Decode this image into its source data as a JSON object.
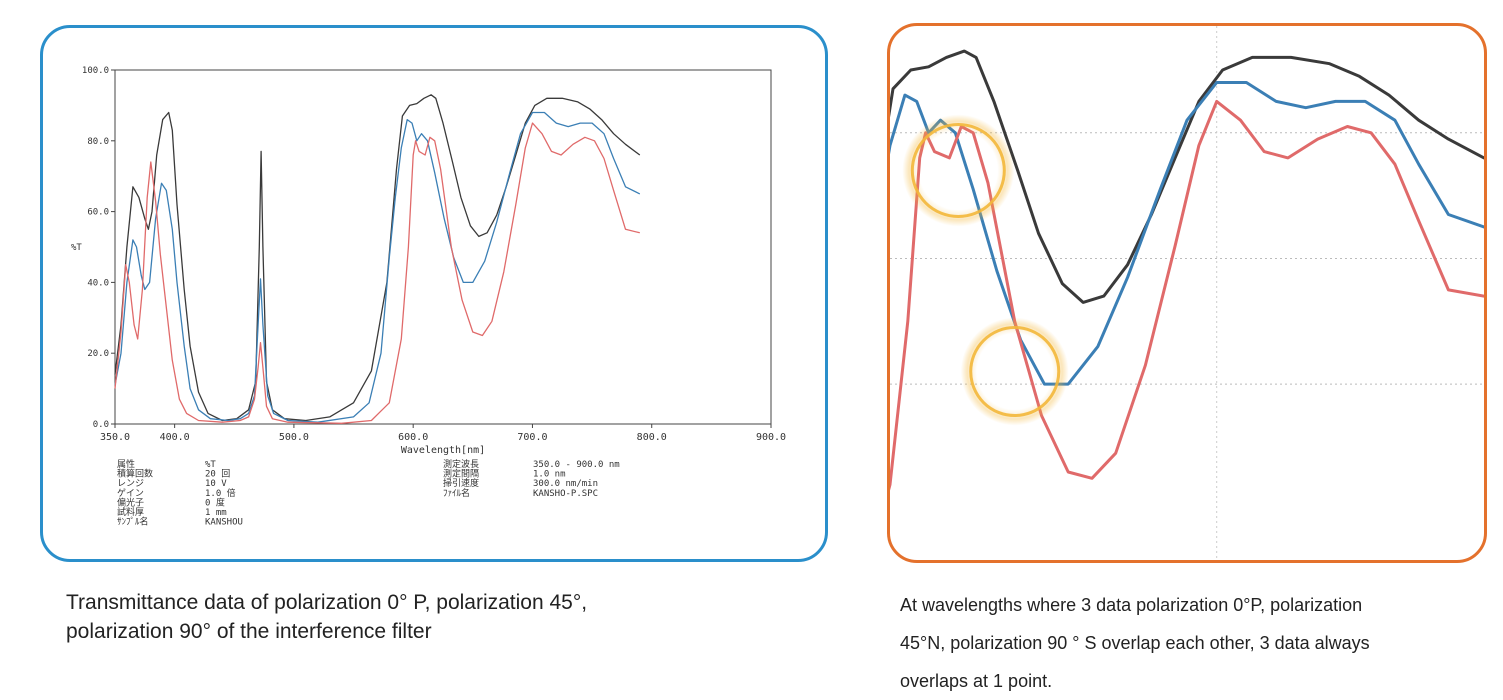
{
  "colors": {
    "left_border": "#2a8fcb",
    "right_border": "#e4712c",
    "series_black": "#3a3a3a",
    "series_blue": "#3b7fb5",
    "series_red": "#e06a6a",
    "highlight": "#f3b73a"
  },
  "chart_data": [
    {
      "type": "line",
      "xlabel": "Wavelength[nm]",
      "ylabel": "%T",
      "xlim": [
        350,
        900
      ],
      "ylim": [
        0,
        100
      ],
      "x_ticks": [
        "350.0",
        "400.0",
        "500.0",
        "600.0",
        "700.0",
        "800.0",
        "900.0"
      ],
      "y_ticks": [
        "100.0",
        "80.0",
        "60.0",
        "40.0",
        "20.0",
        "0.0"
      ],
      "grid": false,
      "series": [
        {
          "color": "black",
          "points": [
            [
              350,
              14
            ],
            [
              355,
              28
            ],
            [
              360,
              50
            ],
            [
              365,
              67
            ],
            [
              370,
              64
            ],
            [
              375,
              58
            ],
            [
              378,
              55
            ],
            [
              381,
              60
            ],
            [
              385,
              76
            ],
            [
              390,
              86
            ],
            [
              395,
              88
            ],
            [
              398,
              83
            ],
            [
              402,
              62
            ],
            [
              408,
              38
            ],
            [
              413,
              22
            ],
            [
              420,
              9
            ],
            [
              428,
              3
            ],
            [
              440,
              1
            ],
            [
              452,
              1.5
            ],
            [
              462,
              4
            ],
            [
              468,
              12
            ],
            [
              471,
              50
            ],
            [
              472.5,
              77
            ],
            [
              474,
              50
            ],
            [
              477,
              12
            ],
            [
              482,
              4
            ],
            [
              492,
              1.5
            ],
            [
              510,
              1
            ],
            [
              530,
              2
            ],
            [
              550,
              6
            ],
            [
              565,
              15
            ],
            [
              578,
              40
            ],
            [
              586,
              72
            ],
            [
              591,
              87
            ],
            [
              597,
              90
            ],
            [
              603,
              90.5
            ],
            [
              609,
              92
            ],
            [
              615,
              93
            ],
            [
              619,
              92
            ],
            [
              625,
              85
            ],
            [
              633,
              74
            ],
            [
              640,
              64
            ],
            [
              648,
              56
            ],
            [
              655,
              53
            ],
            [
              662,
              54
            ],
            [
              670,
              59
            ],
            [
              678,
              67
            ],
            [
              686,
              76
            ],
            [
              694,
              85
            ],
            [
              702,
              90
            ],
            [
              712,
              92
            ],
            [
              725,
              92
            ],
            [
              738,
              91
            ],
            [
              748,
              89
            ],
            [
              758,
              86
            ],
            [
              768,
              82
            ],
            [
              778,
              79
            ],
            [
              790,
              76
            ]
          ]
        },
        {
          "color": "blue",
          "points": [
            [
              350,
              11
            ],
            [
              355,
              20
            ],
            [
              360,
              40
            ],
            [
              365,
              52
            ],
            [
              368,
              50
            ],
            [
              372,
              42
            ],
            [
              375,
              38
            ],
            [
              379,
              40
            ],
            [
              384,
              58
            ],
            [
              389,
              68
            ],
            [
              393,
              66
            ],
            [
              398,
              55
            ],
            [
              402,
              40
            ],
            [
              408,
              22
            ],
            [
              413,
              10
            ],
            [
              420,
              4
            ],
            [
              430,
              1.5
            ],
            [
              445,
              1
            ],
            [
              455,
              1.5
            ],
            [
              462,
              3
            ],
            [
              467,
              8
            ],
            [
              470,
              28
            ],
            [
              472,
              41
            ],
            [
              474,
              28
            ],
            [
              478,
              8
            ],
            [
              483,
              3
            ],
            [
              495,
              1
            ],
            [
              520,
              0.5
            ],
            [
              550,
              2
            ],
            [
              563,
              6
            ],
            [
              573,
              20
            ],
            [
              580,
              47
            ],
            [
              585,
              64
            ],
            [
              590,
              78
            ],
            [
              595,
              86
            ],
            [
              599,
              85
            ],
            [
              603,
              80
            ],
            [
              607,
              82
            ],
            [
              612,
              80
            ],
            [
              618,
              71
            ],
            [
              626,
              58
            ],
            [
              634,
              47
            ],
            [
              642,
              40
            ],
            [
              650,
              40
            ],
            [
              660,
              46
            ],
            [
              670,
              57
            ],
            [
              681,
              71
            ],
            [
              690,
              82
            ],
            [
              700,
              88
            ],
            [
              710,
              88
            ],
            [
              720,
              85
            ],
            [
              730,
              84
            ],
            [
              740,
              85
            ],
            [
              750,
              85
            ],
            [
              760,
              82
            ],
            [
              768,
              75
            ],
            [
              778,
              67
            ],
            [
              790,
              65
            ]
          ]
        },
        {
          "color": "red",
          "points": [
            [
              350,
              10
            ],
            [
              355,
              26
            ],
            [
              359,
              45
            ],
            [
              362,
              40
            ],
            [
              366,
              28
            ],
            [
              369,
              24
            ],
            [
              373,
              38
            ],
            [
              377,
              64
            ],
            [
              380,
              74
            ],
            [
              384,
              63
            ],
            [
              388,
              48
            ],
            [
              392,
              36
            ],
            [
              398,
              18
            ],
            [
              404,
              7
            ],
            [
              410,
              3
            ],
            [
              420,
              1
            ],
            [
              440,
              0.5
            ],
            [
              455,
              1
            ],
            [
              462,
              2
            ],
            [
              467,
              7
            ],
            [
              470,
              16
            ],
            [
              472,
              23
            ],
            [
              474,
              16
            ],
            [
              477,
              5
            ],
            [
              482,
              1.5
            ],
            [
              495,
              0.5
            ],
            [
              540,
              0.2
            ],
            [
              565,
              1
            ],
            [
              580,
              6
            ],
            [
              590,
              24
            ],
            [
              596,
              50
            ],
            [
              600,
              76
            ],
            [
              602,
              80
            ],
            [
              605,
              77
            ],
            [
              610,
              76
            ],
            [
              614,
              81
            ],
            [
              618,
              80
            ],
            [
              623,
              72
            ],
            [
              632,
              50
            ],
            [
              641,
              35
            ],
            [
              650,
              26
            ],
            [
              658,
              25
            ],
            [
              666,
              29
            ],
            [
              676,
              43
            ],
            [
              686,
              62
            ],
            [
              694,
              78
            ],
            [
              700,
              85
            ],
            [
              708,
              82
            ],
            [
              716,
              77
            ],
            [
              724,
              76
            ],
            [
              734,
              79
            ],
            [
              744,
              81
            ],
            [
              752,
              80
            ],
            [
              760,
              75
            ],
            [
              768,
              66
            ],
            [
              778,
              55
            ],
            [
              790,
              54
            ]
          ]
        }
      ]
    },
    {
      "type": "line",
      "title": "",
      "zoomed_detail": true,
      "highlighted_points": 2,
      "series": [
        {
          "color": "black"
        },
        {
          "color": "blue"
        },
        {
          "color": "red"
        }
      ]
    }
  ],
  "meta_table": {
    "left": [
      {
        "key": "属性",
        "value": "%T"
      },
      {
        "key": "積算回数",
        "value": "20 回"
      },
      {
        "key": "レンジ",
        "value": "10 V"
      },
      {
        "key": "ゲイン",
        "value": "1.0 倍"
      },
      {
        "key": "偏光子",
        "value": "0 度"
      },
      {
        "key": "試料厚",
        "value": "1 mm"
      },
      {
        "key": "ｻﾝﾌﾟﾙ名",
        "value": "KANSHOU"
      }
    ],
    "right": [
      {
        "key": "測定波長",
        "value": "350.0 - 900.0 nm"
      },
      {
        "key": "測定間隔",
        "value": "1.0 nm"
      },
      {
        "key": "掃引速度",
        "value": "300.0 nm/min"
      },
      {
        "key": "ﾌｧｲﾙ名",
        "value": "KANSHO-P.SPC"
      }
    ]
  },
  "captions": {
    "left_line1": "Transmittance data of polarization 0° P, polarization 45°,",
    "left_line2": "polarization 90° of the interference filter",
    "right_line1": "At wavelengths where 3 data polarization 0°P, polarization",
    "right_line2": "45°N, polarization 90 ° S overlap each other, 3 data always",
    "right_line3": "overlaps at 1 point."
  }
}
